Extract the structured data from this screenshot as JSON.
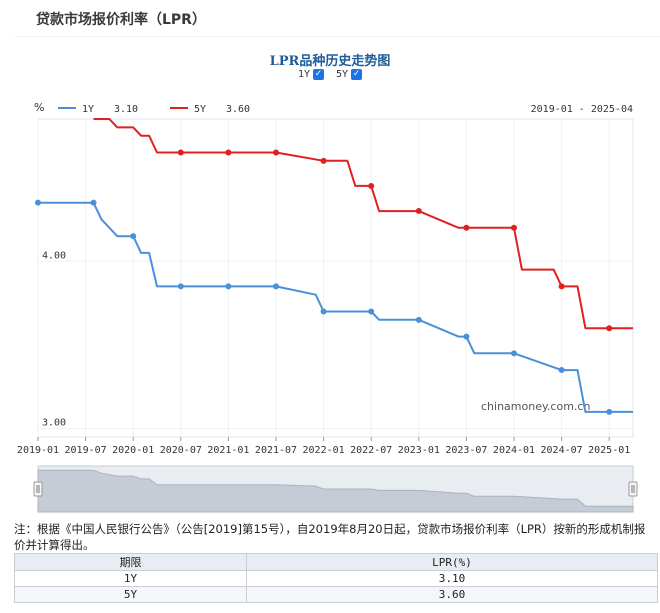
{
  "page": {
    "title": "贷款市场报价利率（LPR）"
  },
  "chart_data": {
    "type": "line",
    "title": "LPR品种历史走势图",
    "toggles": [
      {
        "label": "1Y",
        "checked": true
      },
      {
        "label": "5Y",
        "checked": true
      }
    ],
    "ylabel": "%",
    "date_range": "2019-01 - 2025-04",
    "watermark": "chinamoney.com.cn",
    "x_start": "2019-01",
    "x_end": "2025-04",
    "ylim": [
      2.95,
      4.85
    ],
    "y_ticks": [
      {
        "value": 4.0,
        "label": "4.00"
      },
      {
        "value": 3.0,
        "label": "3.00"
      }
    ],
    "x_ticks": [
      "2019-01",
      "2019-07",
      "2020-01",
      "2020-07",
      "2021-01",
      "2021-07",
      "2022-01",
      "2022-07",
      "2023-01",
      "2023-07",
      "2024-01",
      "2024-07",
      "2025-01"
    ],
    "colors": {
      "1Y": "#4a90d9",
      "5Y": "#e02020"
    },
    "series": [
      {
        "name": "1Y",
        "last": "3.10",
        "points": [
          [
            "2019-01",
            4.35
          ],
          [
            "2019-08",
            4.35
          ],
          [
            "2019-09",
            4.25
          ],
          [
            "2019-10",
            4.2
          ],
          [
            "2019-11",
            4.15
          ],
          [
            "2019-12",
            4.15
          ],
          [
            "2020-01",
            4.15
          ],
          [
            "2020-02",
            4.05
          ],
          [
            "2020-03",
            4.05
          ],
          [
            "2020-04",
            3.85
          ],
          [
            "2020-07",
            3.85
          ],
          [
            "2021-01",
            3.85
          ],
          [
            "2021-07",
            3.85
          ],
          [
            "2021-12",
            3.8
          ],
          [
            "2022-01",
            3.7
          ],
          [
            "2022-07",
            3.7
          ],
          [
            "2022-08",
            3.65
          ],
          [
            "2023-01",
            3.65
          ],
          [
            "2023-06",
            3.55
          ],
          [
            "2023-07",
            3.55
          ],
          [
            "2023-08",
            3.45
          ],
          [
            "2024-01",
            3.45
          ],
          [
            "2024-07",
            3.35
          ],
          [
            "2024-09",
            3.35
          ],
          [
            "2024-10",
            3.1
          ],
          [
            "2025-01",
            3.1
          ],
          [
            "2025-04",
            3.1
          ]
        ],
        "markers": [
          "2019-01",
          "2019-08",
          "2020-01",
          "2020-07",
          "2021-01",
          "2021-07",
          "2022-01",
          "2022-07",
          "2023-01",
          "2023-07",
          "2024-01",
          "2024-07",
          "2025-01"
        ]
      },
      {
        "name": "5Y",
        "last": "3.60",
        "points": [
          [
            "2019-08",
            4.85
          ],
          [
            "2019-10",
            4.85
          ],
          [
            "2019-11",
            4.8
          ],
          [
            "2019-12",
            4.8
          ],
          [
            "2020-01",
            4.8
          ],
          [
            "2020-02",
            4.75
          ],
          [
            "2020-03",
            4.75
          ],
          [
            "2020-04",
            4.65
          ],
          [
            "2020-07",
            4.65
          ],
          [
            "2021-01",
            4.65
          ],
          [
            "2021-07",
            4.65
          ],
          [
            "2022-01",
            4.6
          ],
          [
            "2022-04",
            4.6
          ],
          [
            "2022-05",
            4.45
          ],
          [
            "2022-07",
            4.45
          ],
          [
            "2022-08",
            4.3
          ],
          [
            "2023-01",
            4.3
          ],
          [
            "2023-06",
            4.2
          ],
          [
            "2023-07",
            4.2
          ],
          [
            "2024-01",
            4.2
          ],
          [
            "2024-02",
            3.95
          ],
          [
            "2024-06",
            3.95
          ],
          [
            "2024-07",
            3.85
          ],
          [
            "2024-09",
            3.85
          ],
          [
            "2024-10",
            3.6
          ],
          [
            "2025-01",
            3.6
          ],
          [
            "2025-04",
            3.6
          ]
        ],
        "markers": [
          "2020-07",
          "2021-01",
          "2021-07",
          "2022-01",
          "2022-07",
          "2023-01",
          "2023-07",
          "2024-01",
          "2024-07",
          "2025-01"
        ]
      }
    ]
  },
  "note": "注：根据《中国人民银行公告》（公告[2019]第15号），自2019年8月20日起，贷款市场报价利率（LPR）按新的形成机制报价并计算得出。",
  "table": {
    "headers": [
      "期限",
      "LPR(%)"
    ],
    "rows": [
      [
        "1Y",
        "3.10"
      ],
      [
        "5Y",
        "3.60"
      ]
    ]
  }
}
